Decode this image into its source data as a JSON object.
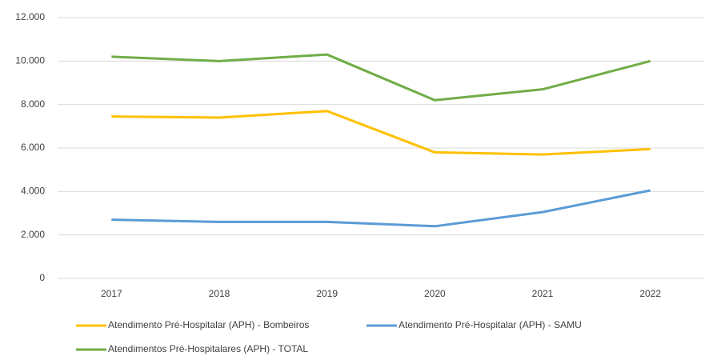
{
  "chart_data": {
    "type": "line",
    "categories": [
      "2017",
      "2018",
      "2019",
      "2020",
      "2021",
      "2022"
    ],
    "series": [
      {
        "name": "Atendimento Pré-Hospitalar (APH) - Bombeiros",
        "color": "#ffc000",
        "values": [
          7450,
          7400,
          7700,
          5800,
          5700,
          5950
        ]
      },
      {
        "name": "Atendimento Pré-Hospitalar (APH) - SAMU",
        "color": "#5b9bd5",
        "values": [
          2700,
          2600,
          2600,
          2400,
          3050,
          4050
        ]
      },
      {
        "name": "Atendimentos Pré-Hospitalares (APH) - TOTAL",
        "color": "#70ad47",
        "values": [
          10200,
          10000,
          10300,
          8200,
          8700,
          10000
        ]
      }
    ],
    "ylim": [
      0,
      12000
    ],
    "yticks": [
      0,
      {
        "value": 2000,
        "label": "2.000"
      },
      {
        "value": 4000,
        "label": "4.000"
      },
      {
        "value": 6000,
        "label": "6.000"
      },
      {
        "value": 8000,
        "label": "8.000"
      },
      {
        "value": 10000,
        "label": "10.000"
      },
      {
        "value": 12000,
        "label": "12.000"
      }
    ],
    "grid": true,
    "legend": "bottom"
  }
}
